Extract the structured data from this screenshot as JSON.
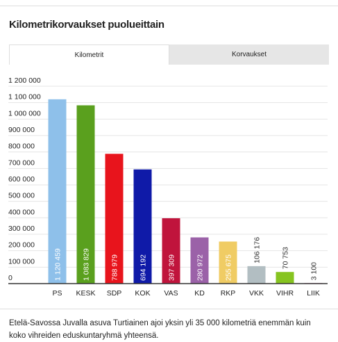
{
  "tabs": [
    "Kilometrit",
    "Korvaukset"
  ],
  "chart_data": {
    "type": "bar",
    "title": "Kilometrikorvaukset puolueittain",
    "categories": [
      "PS",
      "KESK",
      "SDP",
      "KOK",
      "VAS",
      "KD",
      "RKP",
      "VKK",
      "VIHR",
      "LIIK"
    ],
    "values": [
      1120459,
      1083829,
      788979,
      694192,
      397309,
      280972,
      255675,
      106176,
      70753,
      3100
    ],
    "value_labels": [
      "1 120 459",
      "1 083 829",
      "788 979",
      "694 192",
      "397 309",
      "280 972",
      "255 675",
      "106 176",
      "70 753",
      "3 100"
    ],
    "colors": [
      "#8ec0ea",
      "#5aa01e",
      "#e8141c",
      "#0f1aa8",
      "#c0143c",
      "#9b62a8",
      "#f0cc64",
      "#b2bec2",
      "#86c420",
      "#c0508a"
    ],
    "ylim": [
      0,
      1200000
    ],
    "yticks": [
      0,
      {
        "value": 100000,
        "label": "100 000"
      },
      {
        "value": 200000,
        "label": "200 000"
      },
      {
        "value": 300000,
        "label": "300 000"
      },
      {
        "value": 400000,
        "label": "400 000"
      },
      {
        "value": 500000,
        "label": "500 000"
      },
      {
        "value": 600000,
        "label": "600 000"
      },
      {
        "value": 700000,
        "label": "700 000"
      },
      {
        "value": 800000,
        "label": "800 000"
      },
      {
        "value": 900000,
        "label": "900 000"
      },
      {
        "value": 1000000,
        "label": "1 000 000"
      },
      {
        "value": 1100000,
        "label": "1 100 000"
      },
      {
        "value": 1200000,
        "label": "1 200 000"
      }
    ],
    "grid": true
  },
  "footer": "Etelä-Savossa Juvalla asuva Turtiainen ajoi yksin yli 35 000 kilometriä enemmän kuin koko vihreiden eduskuntaryhmä yhteensä."
}
